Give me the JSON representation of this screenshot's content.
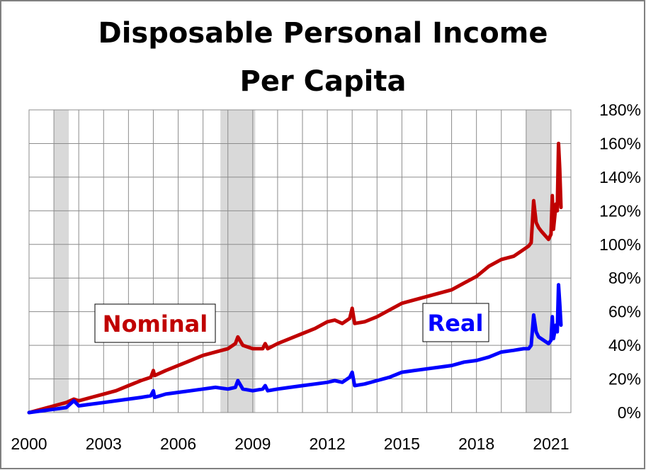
{
  "chart_data": {
    "type": "line",
    "title": [
      "Disposable Personal Income",
      "Per Capita"
    ],
    "xlabel": "",
    "ylabel": "",
    "x_ticks": [
      "2000",
      "2003",
      "2006",
      "2009",
      "2012",
      "2015",
      "2018",
      "2021"
    ],
    "y_ticks": [
      "0%",
      "20%",
      "40%",
      "60%",
      "80%",
      "100%",
      "120%",
      "140%",
      "160%",
      "180%"
    ],
    "xlim": [
      2000,
      2021.8
    ],
    "ylim": [
      0,
      180
    ],
    "y_axis_side": "right",
    "grid": true,
    "recessions": [
      [
        2001.0,
        2001.6
      ],
      [
        2007.7,
        2009.1
      ],
      [
        2020.0,
        2021.0
      ]
    ],
    "series": [
      {
        "name": "Nominal",
        "color": "#c00000",
        "points": [
          [
            2000.0,
            0
          ],
          [
            2000.5,
            2
          ],
          [
            2001.0,
            4
          ],
          [
            2001.5,
            6
          ],
          [
            2001.8,
            8
          ],
          [
            2002.0,
            7
          ],
          [
            2002.5,
            9
          ],
          [
            2003.0,
            11
          ],
          [
            2003.5,
            13
          ],
          [
            2004.0,
            16
          ],
          [
            2004.5,
            19
          ],
          [
            2004.9,
            21
          ],
          [
            2005.0,
            25
          ],
          [
            2005.05,
            22
          ],
          [
            2005.5,
            25
          ],
          [
            2006.0,
            28
          ],
          [
            2006.5,
            31
          ],
          [
            2007.0,
            34
          ],
          [
            2007.5,
            36
          ],
          [
            2008.0,
            38
          ],
          [
            2008.3,
            41
          ],
          [
            2008.4,
            45
          ],
          [
            2008.6,
            40
          ],
          [
            2009.0,
            38
          ],
          [
            2009.4,
            38
          ],
          [
            2009.5,
            41
          ],
          [
            2009.6,
            38
          ],
          [
            2010.0,
            41
          ],
          [
            2010.5,
            44
          ],
          [
            2011.0,
            47
          ],
          [
            2011.5,
            50
          ],
          [
            2012.0,
            54
          ],
          [
            2012.3,
            55
          ],
          [
            2012.6,
            53
          ],
          [
            2012.9,
            56
          ],
          [
            2013.0,
            62
          ],
          [
            2013.1,
            53
          ],
          [
            2013.5,
            54
          ],
          [
            2014.0,
            57
          ],
          [
            2014.5,
            61
          ],
          [
            2015.0,
            65
          ],
          [
            2015.5,
            67
          ],
          [
            2016.0,
            69
          ],
          [
            2016.5,
            71
          ],
          [
            2017.0,
            73
          ],
          [
            2017.5,
            77
          ],
          [
            2018.0,
            81
          ],
          [
            2018.5,
            87
          ],
          [
            2019.0,
            91
          ],
          [
            2019.5,
            93
          ],
          [
            2019.9,
            97
          ],
          [
            2020.1,
            99
          ],
          [
            2020.2,
            101
          ],
          [
            2020.3,
            126
          ],
          [
            2020.4,
            113
          ],
          [
            2020.5,
            110
          ],
          [
            2020.6,
            108
          ],
          [
            2020.9,
            103
          ],
          [
            2021.0,
            106
          ],
          [
            2021.05,
            129
          ],
          [
            2021.1,
            109
          ],
          [
            2021.2,
            124
          ],
          [
            2021.25,
            120
          ],
          [
            2021.3,
            160
          ],
          [
            2021.35,
            145
          ],
          [
            2021.4,
            122
          ]
        ]
      },
      {
        "name": "Real",
        "color": "#0000ff",
        "points": [
          [
            2000.0,
            0
          ],
          [
            2000.5,
            1
          ],
          [
            2001.0,
            2
          ],
          [
            2001.5,
            3
          ],
          [
            2001.8,
            7
          ],
          [
            2002.0,
            4
          ],
          [
            2002.5,
            5
          ],
          [
            2003.0,
            6
          ],
          [
            2003.5,
            7
          ],
          [
            2004.0,
            8
          ],
          [
            2004.5,
            9
          ],
          [
            2004.9,
            10
          ],
          [
            2005.0,
            13
          ],
          [
            2005.05,
            9
          ],
          [
            2005.5,
            11
          ],
          [
            2006.0,
            12
          ],
          [
            2006.5,
            13
          ],
          [
            2007.0,
            14
          ],
          [
            2007.5,
            15
          ],
          [
            2008.0,
            14
          ],
          [
            2008.3,
            15
          ],
          [
            2008.4,
            19
          ],
          [
            2008.6,
            14
          ],
          [
            2009.0,
            13
          ],
          [
            2009.4,
            14
          ],
          [
            2009.5,
            16
          ],
          [
            2009.6,
            13
          ],
          [
            2010.0,
            14
          ],
          [
            2010.5,
            15
          ],
          [
            2011.0,
            16
          ],
          [
            2011.5,
            17
          ],
          [
            2012.0,
            18
          ],
          [
            2012.3,
            19
          ],
          [
            2012.6,
            18
          ],
          [
            2012.9,
            21
          ],
          [
            2013.0,
            24
          ],
          [
            2013.1,
            16
          ],
          [
            2013.5,
            17
          ],
          [
            2014.0,
            19
          ],
          [
            2014.5,
            21
          ],
          [
            2015.0,
            24
          ],
          [
            2015.5,
            25
          ],
          [
            2016.0,
            26
          ],
          [
            2016.5,
            27
          ],
          [
            2017.0,
            28
          ],
          [
            2017.5,
            30
          ],
          [
            2018.0,
            31
          ],
          [
            2018.5,
            33
          ],
          [
            2019.0,
            36
          ],
          [
            2019.5,
            37
          ],
          [
            2019.9,
            38
          ],
          [
            2020.1,
            38
          ],
          [
            2020.2,
            40
          ],
          [
            2020.3,
            58
          ],
          [
            2020.4,
            48
          ],
          [
            2020.5,
            45
          ],
          [
            2020.6,
            44
          ],
          [
            2020.9,
            41
          ],
          [
            2021.0,
            43
          ],
          [
            2021.05,
            57
          ],
          [
            2021.1,
            44
          ],
          [
            2021.2,
            52
          ],
          [
            2021.25,
            48
          ],
          [
            2021.3,
            76
          ],
          [
            2021.35,
            65
          ],
          [
            2021.4,
            52
          ]
        ]
      }
    ]
  }
}
